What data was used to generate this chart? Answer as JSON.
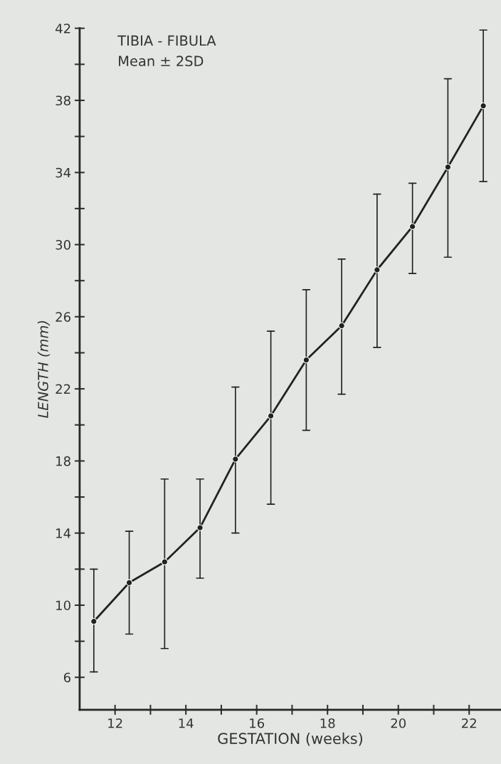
{
  "chart_data": {
    "type": "line",
    "xlabel": "GESTATION (weeks)",
    "ylabel": "LENGTH (mm)",
    "annotations": [
      "TIBIA - FIBULA",
      "Mean ± 2SD"
    ],
    "x": [
      11.4,
      12.4,
      13.4,
      14.4,
      15.4,
      16.4,
      17.4,
      18.4,
      19.4,
      20.4,
      21.4,
      22.4
    ],
    "series": [
      {
        "color": "#222222",
        "values": [
          9.1,
          11.25,
          12.4,
          14.3,
          18.1,
          20.5,
          23.6,
          25.5,
          28.6,
          31.0,
          34.3,
          37.7
        ],
        "errors": [
          [
            6.3,
            12.0
          ],
          [
            8.4,
            14.1
          ],
          [
            7.6,
            17.0
          ],
          [
            11.5,
            17.0
          ],
          [
            14.0,
            22.1
          ],
          [
            15.6,
            25.2
          ],
          [
            19.7,
            27.5
          ],
          [
            21.7,
            29.2
          ],
          [
            24.3,
            32.8
          ],
          [
            28.4,
            33.4
          ],
          [
            29.3,
            39.2
          ],
          [
            33.5,
            41.9
          ]
        ]
      }
    ],
    "marker": "circle",
    "line_style": "solid",
    "grid": false,
    "legend": false,
    "xlim": [
      11,
      22.9
    ],
    "ylim": [
      4.2,
      42
    ],
    "xticks": [
      12,
      {
        "value": 13,
        "label": null
      },
      14,
      {
        "value": 15,
        "label": null
      },
      16,
      {
        "value": 17,
        "label": null
      },
      18,
      {
        "value": 19,
        "label": null
      },
      20,
      {
        "value": 21,
        "label": null
      },
      22
    ],
    "yticks": [
      6,
      {
        "value": 8,
        "label": null
      },
      10,
      {
        "value": 12,
        "label": null
      },
      14,
      {
        "value": 16,
        "label": null
      },
      18,
      {
        "value": 20,
        "label": null
      },
      22,
      {
        "value": 24,
        "label": null
      },
      26,
      {
        "value": 28,
        "label": null
      },
      30,
      {
        "value": 32,
        "label": null
      },
      34,
      {
        "value": 36,
        "label": null
      },
      38,
      {
        "value": 40,
        "label": null
      },
      42
    ]
  }
}
